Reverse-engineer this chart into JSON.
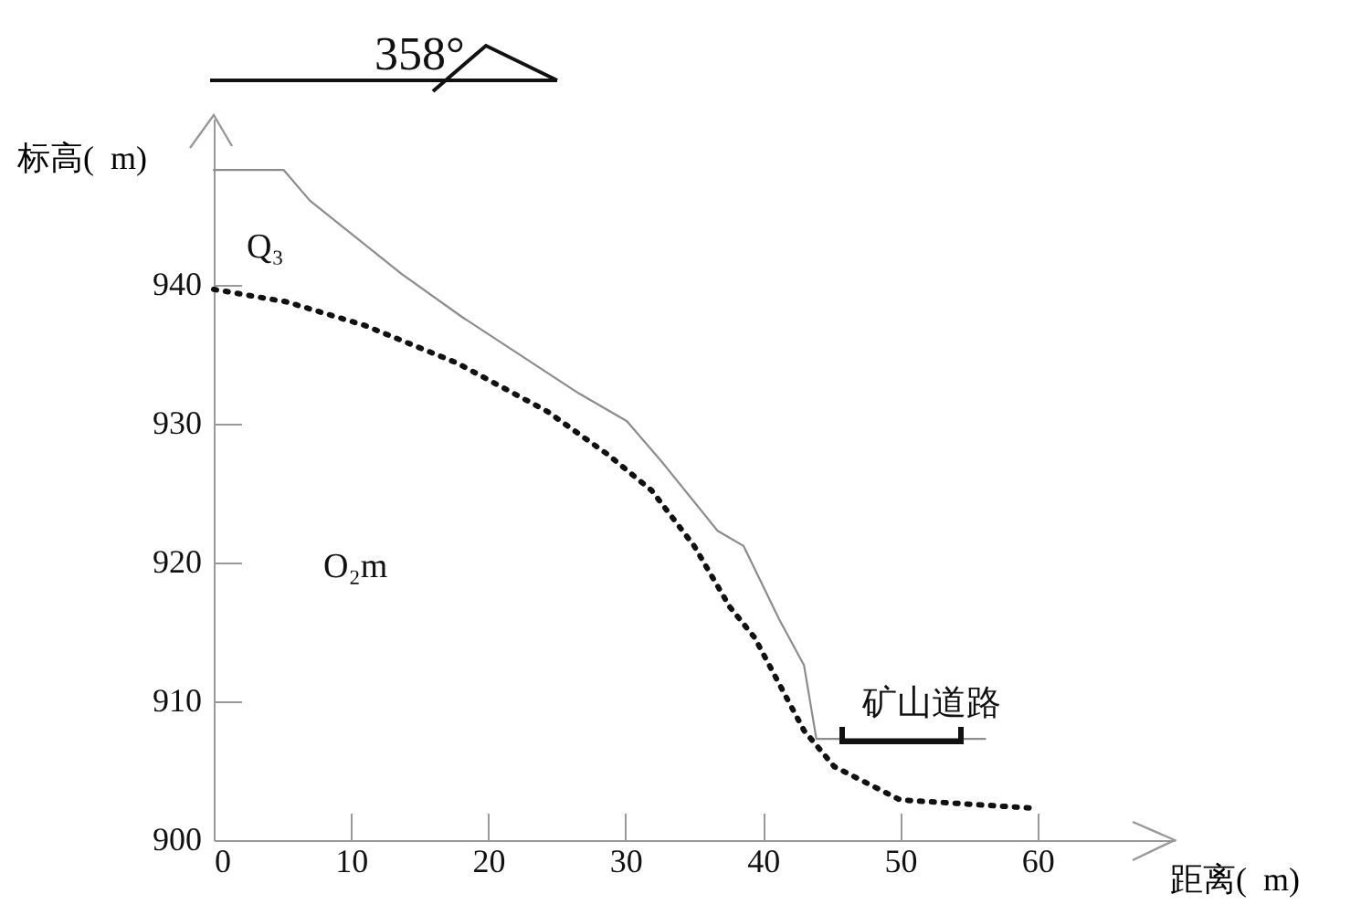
{
  "chart_data": {
    "type": "line",
    "title": "358°",
    "xlabel": "距离(  m)",
    "ylabel": "标高(  m)",
    "xlim": [
      0,
      70
    ],
    "xticks": [
      0,
      10,
      20,
      30,
      40,
      50,
      60
    ],
    "ylim": [
      900,
      952
    ],
    "yticks": [
      900,
      910,
      920,
      930,
      940
    ],
    "grid": false,
    "marker": "none",
    "series": [
      {
        "color": "#8c8c8c",
        "line_style": "solid",
        "x": [
          0,
          5.1,
          7.0,
          13.7,
          18.1,
          26.6,
          30.1,
          32.7,
          36.7,
          38.6,
          41.2,
          43.0,
          43.9,
          56.2
        ],
        "values": [
          948.3,
          948.3,
          946.1,
          940.8,
          937.7,
          932.2,
          930.2,
          927.2,
          922.3,
          921.2,
          915.9,
          912.6,
          907.3,
          907.3
        ]
      },
      {
        "color": "#111111",
        "line_style": "dotted",
        "x": [
          0,
          5.3,
          11.0,
          17.7,
          24.3,
          28.7,
          31.9,
          35.0,
          37.6,
          39.4,
          43.0,
          45.2,
          50.0,
          59.8
        ],
        "values": [
          939.7,
          938.8,
          937.1,
          934.4,
          930.9,
          927.8,
          925.2,
          921.2,
          916.8,
          914.6,
          907.9,
          905.3,
          902.9,
          902.3
        ]
      }
    ],
    "annotations": [
      "Q₃",
      "O₂m",
      "矿山道路"
    ]
  }
}
